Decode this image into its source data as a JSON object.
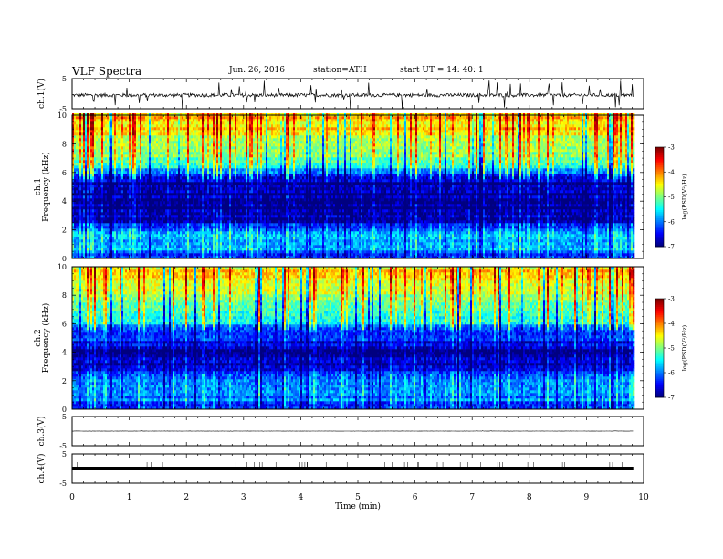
{
  "header": {
    "title": "VLF  Spectra",
    "date": "Jun. 26, 2016",
    "station": "station=ATH",
    "start": "start  UT  =    14: 40: 1"
  },
  "chart_data": [
    {
      "type": "line",
      "ylabel": "ch.1(V)",
      "ylim": [
        -5,
        5
      ],
      "yticks": [
        "5",
        "-5"
      ],
      "baseline": -0.5,
      "noise": 0.6
    },
    {
      "type": "heatmap",
      "ylabel": "ch.1\nFrequency (kHz)",
      "ylim": [
        0,
        10
      ],
      "yticks": [
        "0",
        "2",
        "4",
        "6",
        "8",
        "10"
      ],
      "colorbar": {
        "label": "log(PSD(V²/Hz)",
        "range": [
          -7,
          -3
        ],
        "ticks": [
          "-3",
          "-4",
          "-5",
          "-6",
          "-7"
        ]
      },
      "profile": [
        {
          "f": 0.0,
          "v": -6.6
        },
        {
          "f": 0.3,
          "v": -6.2
        },
        {
          "f": 0.6,
          "v": -5.8
        },
        {
          "f": 1.0,
          "v": -5.8
        },
        {
          "f": 1.5,
          "v": -5.9
        },
        {
          "f": 2.0,
          "v": -6.1
        },
        {
          "f": 2.5,
          "v": -6.6
        },
        {
          "f": 3.0,
          "v": -6.9
        },
        {
          "f": 4.0,
          "v": -7.0
        },
        {
          "f": 5.0,
          "v": -6.9
        },
        {
          "f": 5.7,
          "v": -6.8
        },
        {
          "f": 6.3,
          "v": -5.6
        },
        {
          "f": 7.0,
          "v": -5.2
        },
        {
          "f": 8.0,
          "v": -4.8
        },
        {
          "f": 9.0,
          "v": -4.4
        },
        {
          "f": 10.0,
          "v": -4.2
        }
      ]
    },
    {
      "type": "heatmap",
      "ylabel": "ch.2\nFrequency (kHz)",
      "ylim": [
        0,
        10
      ],
      "yticks": [
        "0",
        "2",
        "4",
        "6",
        "8",
        "10"
      ],
      "colorbar": {
        "label": "log(PSD(V²/Hz)",
        "range": [
          -7,
          -3
        ],
        "ticks": [
          "-3",
          "-4",
          "-5",
          "-6",
          "-7"
        ]
      },
      "profile": [
        {
          "f": 0.0,
          "v": -6.5
        },
        {
          "f": 0.5,
          "v": -6.1
        },
        {
          "f": 1.0,
          "v": -5.9
        },
        {
          "f": 2.0,
          "v": -5.9
        },
        {
          "f": 2.6,
          "v": -6.3
        },
        {
          "f": 3.0,
          "v": -6.8
        },
        {
          "f": 4.0,
          "v": -6.9
        },
        {
          "f": 4.5,
          "v": -6.7
        },
        {
          "f": 5.2,
          "v": -6.4
        },
        {
          "f": 6.0,
          "v": -5.7
        },
        {
          "f": 7.0,
          "v": -5.2
        },
        {
          "f": 8.0,
          "v": -4.9
        },
        {
          "f": 9.0,
          "v": -4.6
        },
        {
          "f": 10.0,
          "v": -4.4
        }
      ]
    },
    {
      "type": "line",
      "ylabel": "ch.3(V)",
      "ylim": [
        -5,
        5
      ],
      "yticks": [
        "5",
        "-5"
      ],
      "baseline": 0.0,
      "noise": 0.05
    },
    {
      "type": "line",
      "ylabel": "ch.4(V)",
      "ylim": [
        -5,
        5
      ],
      "yticks": [
        "5",
        "-5"
      ],
      "baseline": 0.0,
      "noise": 0.0
    }
  ],
  "xaxis": {
    "label": "Time  (min)",
    "xlim": [
      0,
      10
    ],
    "ticks": [
      "0",
      "1",
      "2",
      "3",
      "4",
      "5",
      "6",
      "7",
      "8",
      "9",
      "10"
    ],
    "data_end": 9.82
  }
}
